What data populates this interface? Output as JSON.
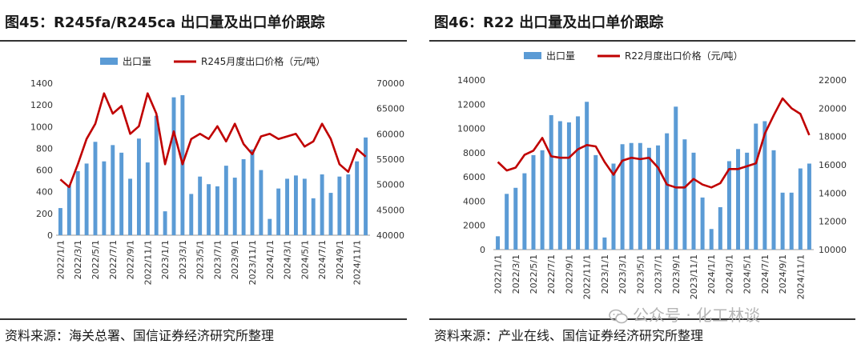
{
  "charts": [
    {
      "title": "图45：R245fa/R245ca 出口量及出口单价跟踪",
      "source": "资料来源：海关总署、国信证券经济研究所整理"
    },
    {
      "title": "图46：R22 出口量及出口单价跟踪",
      "source": "资料来源：产业在线、国信证券经济研究所整理"
    }
  ],
  "watermark": "公众号 · 化工林谈",
  "colors": {
    "bar": "#5b9bd5",
    "line": "#c00000"
  },
  "chart_data": [
    {
      "type": "bar+line",
      "categories": [
        "2022/1/1",
        "2022/2/1",
        "2022/3/1",
        "2022/4/1",
        "2022/5/1",
        "2022/6/1",
        "2022/7/1",
        "2022/8/1",
        "2022/9/1",
        "2022/10/1",
        "2022/11/1",
        "2022/12/1",
        "2023/1/1",
        "2023/2/1",
        "2023/3/1",
        "2023/4/1",
        "2023/5/1",
        "2023/6/1",
        "2023/7/1",
        "2023/8/1",
        "2023/9/1",
        "2023/10/1",
        "2023/11/1",
        "2023/12/1",
        "2024/1/1",
        "2024/2/1",
        "2024/3/1",
        "2024/4/1",
        "2024/5/1",
        "2024/6/1",
        "2024/7/1",
        "2024/8/1",
        "2024/9/1",
        "2024/10/1",
        "2024/11/1",
        "2024/12/1"
      ],
      "tick_labels": [
        "2022/1/1",
        "2022/3/1",
        "2022/5/1",
        "2022/7/1",
        "2022/9/1",
        "2022/11/1",
        "2023/1/1",
        "2023/3/1",
        "2023/5/1",
        "2023/7/1",
        "2023/9/1",
        "2023/11/1",
        "2024/1/1",
        "2024/3/1",
        "2024/5/1",
        "2024/7/1",
        "2024/9/1",
        "2024/11/1"
      ],
      "series": [
        {
          "name": "出口量",
          "kind": "bar",
          "axis": "left",
          "values": [
            250,
            460,
            590,
            660,
            860,
            680,
            830,
            760,
            520,
            890,
            670,
            1100,
            220,
            1270,
            1290,
            380,
            540,
            470,
            450,
            640,
            530,
            700,
            790,
            600,
            150,
            430,
            520,
            550,
            520,
            340,
            560,
            390,
            540,
            560,
            680,
            900
          ]
        },
        {
          "name": "R245月度出口价格（元/吨）",
          "kind": "line",
          "axis": "right",
          "values": [
            51000,
            49500,
            54000,
            59000,
            62000,
            68000,
            64000,
            65500,
            60000,
            61500,
            68000,
            64000,
            54000,
            60500,
            54000,
            59000,
            60000,
            59000,
            61500,
            58500,
            62000,
            58000,
            56000,
            59500,
            60000,
            59000,
            59500,
            60000,
            57500,
            58500,
            62000,
            59000,
            54000,
            52500,
            57000,
            55500
          ]
        }
      ],
      "y_left": {
        "min": 0,
        "max": 1400,
        "step": 200
      },
      "y_right": {
        "min": 40000,
        "max": 70000,
        "step": 5000
      },
      "legend": "top"
    },
    {
      "type": "bar+line",
      "categories": [
        "2022/1/1",
        "2022/2/1",
        "2022/3/1",
        "2022/4/1",
        "2022/5/1",
        "2022/6/1",
        "2022/7/1",
        "2022/8/1",
        "2022/9/1",
        "2022/10/1",
        "2022/11/1",
        "2022/12/1",
        "2023/1/1",
        "2023/2/1",
        "2023/3/1",
        "2023/4/1",
        "2023/5/1",
        "2023/6/1",
        "2023/7/1",
        "2023/8/1",
        "2023/9/1",
        "2023/10/1",
        "2023/11/1",
        "2023/12/1",
        "2024/1/1",
        "2024/2/1",
        "2024/3/1",
        "2024/4/1",
        "2024/5/1",
        "2024/6/1",
        "2024/7/1",
        "2024/8/1",
        "2024/9/1",
        "2024/10/1",
        "2024/11/1",
        "2024/12/1"
      ],
      "tick_labels": [
        "2022/1/1",
        "2022/3/1",
        "2022/5/1",
        "2022/7/1",
        "2022/9/1",
        "2022/11/1",
        "2023/1/1",
        "2023/3/1",
        "2023/5/1",
        "2023/7/1",
        "2023/9/1",
        "2023/11/1",
        "2024/1/1",
        "2024/3/1",
        "2024/5/1",
        "2024/7/1",
        "2024/9/1",
        "2024/11/1"
      ],
      "series": [
        {
          "name": "出口量",
          "kind": "bar",
          "axis": "left",
          "values": [
            1100,
            4600,
            5100,
            6300,
            7800,
            8200,
            11100,
            10600,
            10500,
            11000,
            12200,
            7800,
            1000,
            7100,
            8700,
            8800,
            8800,
            8400,
            8600,
            9600,
            11800,
            9100,
            8000,
            4300,
            1700,
            3500,
            7300,
            8300,
            8000,
            10400,
            10600,
            8200,
            4700,
            4700,
            6700,
            7100
          ]
        },
        {
          "name": "R22月度出口价格（元/吨）",
          "kind": "line",
          "axis": "right",
          "values": [
            16200,
            15600,
            15800,
            16700,
            17000,
            17900,
            16600,
            16500,
            16500,
            17100,
            17400,
            17300,
            16200,
            15300,
            16300,
            16500,
            16400,
            16500,
            15800,
            14600,
            14400,
            14400,
            15000,
            14600,
            14400,
            14700,
            15700,
            15700,
            15900,
            16100,
            18200,
            19500,
            20700,
            20000,
            19600,
            18100
          ]
        }
      ],
      "y_left": {
        "min": 0,
        "max": 14000,
        "step": 2000
      },
      "y_right": {
        "min": 10000,
        "max": 22000,
        "step": 2000
      },
      "legend": "top"
    }
  ]
}
